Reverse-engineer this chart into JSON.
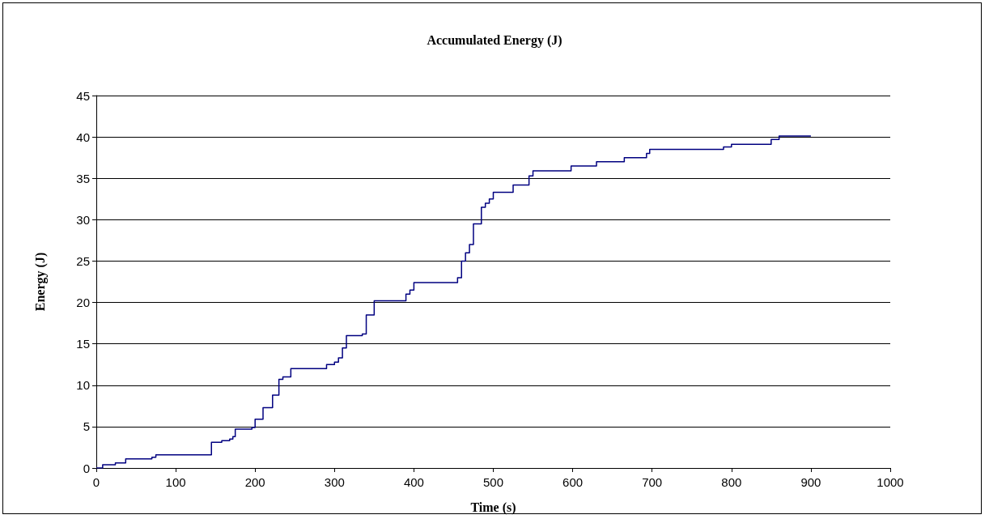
{
  "chart_data": {
    "type": "step",
    "title": "Accumulated Energy (J)",
    "xlabel": "Time (s)",
    "ylabel": "Energy (J)",
    "x": [
      0,
      8,
      24,
      37,
      70,
      75,
      145,
      158,
      168,
      172,
      175,
      196,
      200,
      210,
      222,
      230,
      235,
      245,
      290,
      300,
      305,
      310,
      315,
      335,
      340,
      350,
      390,
      395,
      400,
      455,
      460,
      465,
      470,
      475,
      485,
      490,
      495,
      500,
      525,
      545,
      550,
      598,
      630,
      665,
      693,
      697,
      790,
      800,
      850,
      860,
      900
    ],
    "series": [
      {
        "color": "#000080",
        "values": [
          0,
          0.4,
          0.6,
          1.1,
          1.3,
          1.6,
          3.1,
          3.3,
          3.5,
          3.8,
          4.7,
          4.9,
          5.9,
          7.3,
          8.8,
          10.7,
          11,
          12,
          12.5,
          12.8,
          13.3,
          14.5,
          16,
          16.2,
          18.5,
          20.2,
          21,
          21.5,
          22.4,
          23,
          25,
          26,
          27,
          29.5,
          31.5,
          32,
          32.5,
          33.3,
          34.2,
          35.3,
          35.9,
          36.5,
          37,
          37.5,
          38,
          38.5,
          38.8,
          39.1,
          39.7,
          40.1,
          40.1
        ]
      }
    ],
    "xlim": [
      0,
      1000
    ],
    "xticks": [
      0,
      100,
      200,
      300,
      400,
      500,
      600,
      700,
      800,
      900,
      1000
    ],
    "ylim": [
      0,
      45
    ],
    "yticks": [
      0,
      5,
      10,
      15,
      20,
      25,
      30,
      35,
      40,
      45
    ],
    "grid": "y",
    "marker": "none",
    "line_style": "solid"
  }
}
